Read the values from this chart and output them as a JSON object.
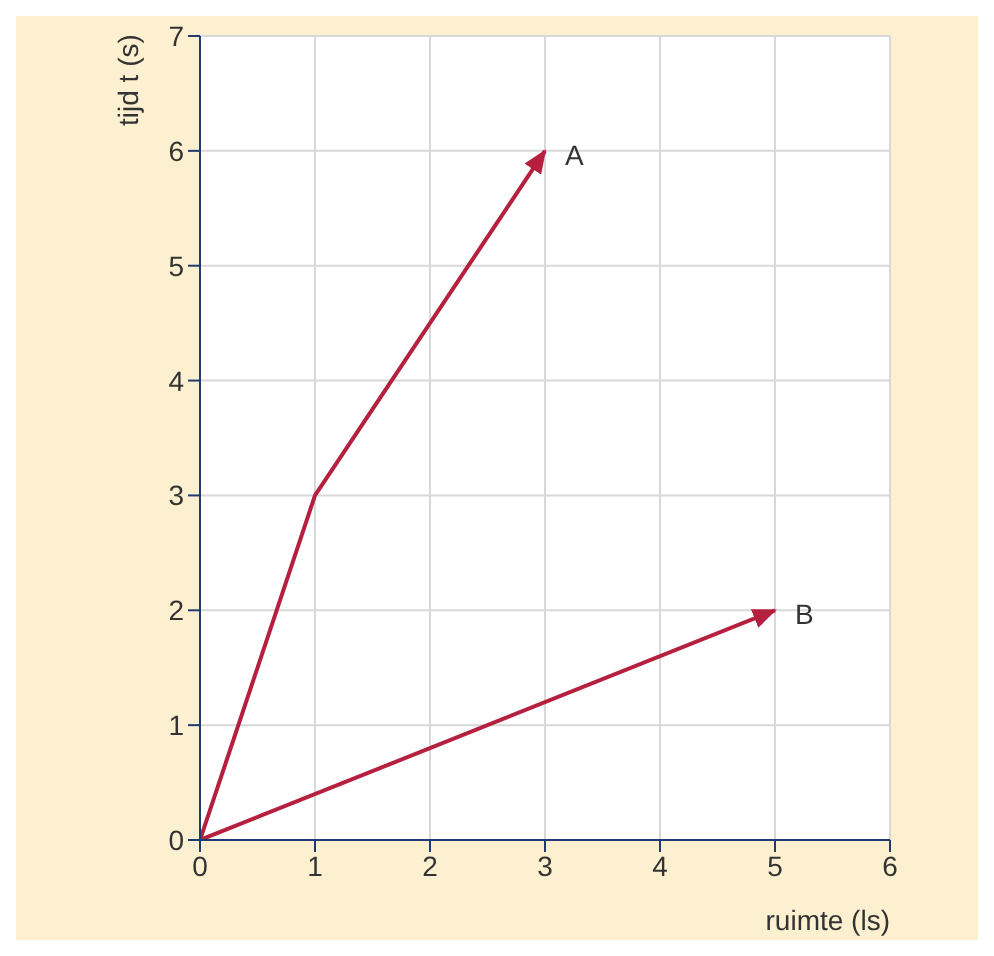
{
  "chart_data": {
    "type": "line",
    "xlabel": "ruimte (ls)",
    "ylabel": "tijd t (s)",
    "series": [
      {
        "name": "A",
        "color": "#b5203f",
        "x": [
          0,
          1,
          3
        ],
        "values": [
          0,
          3,
          6
        ]
      },
      {
        "name": "B",
        "color": "#b5203f",
        "x": [
          0,
          5
        ],
        "values": [
          0,
          2
        ]
      }
    ],
    "xlim": [
      0,
      6
    ],
    "xticks": [
      0,
      1,
      2,
      3,
      4,
      5,
      6
    ],
    "ylim": [
      0,
      7
    ],
    "yticks": [
      0,
      1,
      2,
      3,
      4,
      5,
      6,
      7
    ],
    "grid": true,
    "line_style": "solid"
  }
}
